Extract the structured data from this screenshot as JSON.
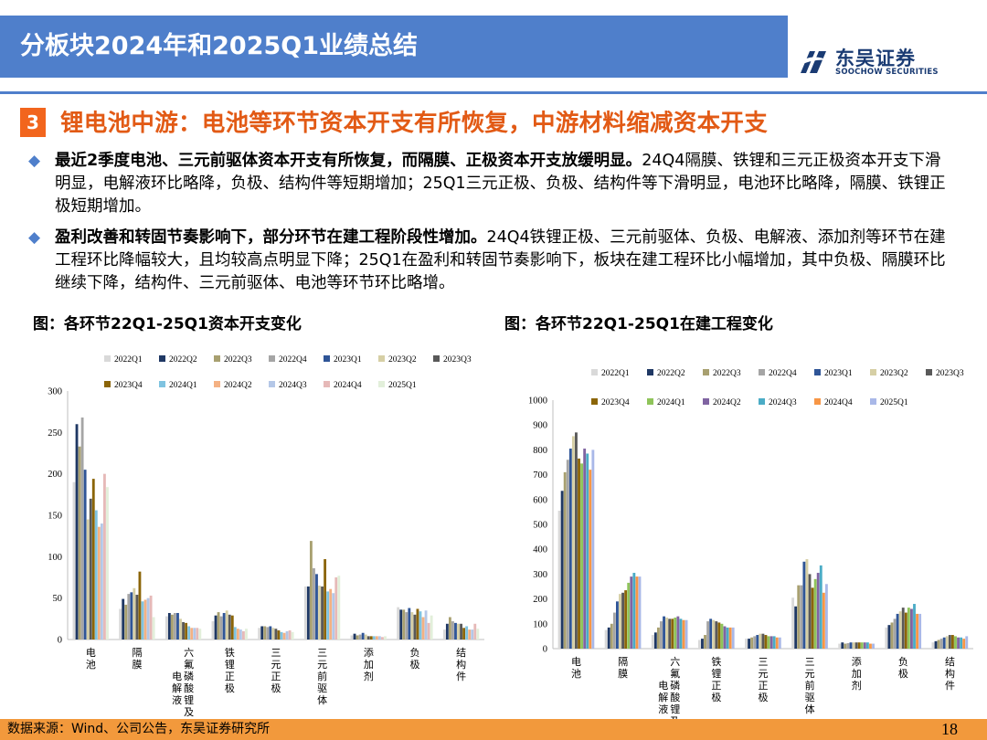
{
  "header": {
    "title": "分板块2024年和2025Q1业绩总结",
    "logo_cn": "东吴证券",
    "logo_en": "SOOCHOW SECURITIES"
  },
  "section": {
    "number": "3",
    "title": "锂电池中游：电池等环节资本开支有所恢复，中游材料缩减资本开支"
  },
  "bullets": [
    {
      "lead": "最近2季度电池、三元前驱体资本开支有所恢复，而隔膜、正极资本开支放缓明显。",
      "body": "24Q4隔膜、铁锂和三元正极资本开支下滑明显，电解液环比略降，负极、结构件等短期增加；25Q1三元正极、负极、结构件等下滑明显，电池环比略降，隔膜、铁锂正极短期增加。"
    },
    {
      "lead": "盈利改善和转固节奏影响下，部分环节在建工程阶段性增加。",
      "body": "24Q4铁锂正极、三元前驱体、负极、电解液、添加剂等环节在建工程环比降幅较大，且均较高点明显下降；25Q1在盈利和转固节奏影响下，板块在建工程环比小幅增加，其中负极、隔膜环比继续下降，结构件、三元前驱体、电池等环节环比略增。"
    }
  ],
  "footer": {
    "source": "数据来源：Wind、公司公告，东吴证券研究所",
    "page": "18"
  },
  "chart_data": [
    {
      "type": "bar",
      "title": "图：各环节22Q1-25Q1资本开支变化",
      "categories": [
        "电池",
        "隔膜",
        "六氟磷酸锂及电解液",
        "铁锂正极",
        "三元正极",
        "三元前驱体",
        "添加剂",
        "负极",
        "结构件"
      ],
      "category_labels": [
        [
          "电",
          "池"
        ],
        [
          "隔",
          "膜"
        ],
        [
          "六",
          "氟",
          "磷",
          "酸",
          "锂",
          "及"
        ],
        [
          "铁",
          "锂",
          "正",
          "极"
        ],
        [
          "三",
          "元",
          "正",
          "极"
        ],
        [
          "三",
          "元",
          "前",
          "驱",
          "体"
        ],
        [
          "添",
          "加",
          "剂"
        ],
        [
          "负",
          "极"
        ],
        [
          "结",
          "构",
          "件"
        ]
      ],
      "category_labels_extra": {
        "2": [
          "电",
          "解",
          "液"
        ]
      },
      "ylim": [
        0,
        300
      ],
      "yticks": [
        0,
        50,
        100,
        150,
        200,
        250,
        300
      ],
      "legend_rows": [
        [
          "2022Q1",
          "2022Q2",
          "2022Q3",
          "2022Q4",
          "2023Q1",
          "2023Q2",
          "2023Q3"
        ],
        [
          "2023Q4",
          "2024Q1",
          "2024Q2",
          "2024Q3",
          "2024Q4",
          "2025Q1"
        ]
      ],
      "legend_position": "top",
      "series": [
        {
          "name": "2022Q1",
          "color": "#D9D9D9",
          "values": [
            190,
            37,
            28,
            22,
            14,
            64,
            5,
            39,
            12
          ]
        },
        {
          "name": "2022Q2",
          "color": "#1F3864",
          "values": [
            260,
            49,
            32,
            29,
            16,
            64,
            7,
            36,
            19
          ]
        },
        {
          "name": "2022Q3",
          "color": "#A8A070",
          "values": [
            233,
            42,
            30,
            33,
            16,
            119,
            5,
            36,
            27
          ]
        },
        {
          "name": "2022Q4",
          "color": "#A5A5A5",
          "values": [
            268,
            55,
            32,
            28,
            15,
            86,
            6,
            33,
            22
          ]
        },
        {
          "name": "2023Q1",
          "color": "#2F5597",
          "values": [
            205,
            57,
            32,
            32,
            16,
            79,
            8,
            38,
            20
          ]
        },
        {
          "name": "2023Q2",
          "color": "#D6CFA5",
          "values": [
            145,
            62,
            25,
            35,
            14,
            65,
            6,
            33,
            19
          ]
        },
        {
          "name": "2023Q3",
          "color": "#595959",
          "values": [
            170,
            54,
            21,
            30,
            13,
            64,
            4,
            30,
            19
          ]
        },
        {
          "name": "2023Q4",
          "color": "#8B6508",
          "values": [
            194,
            82,
            20,
            29,
            11,
            97,
            4,
            37,
            14
          ]
        },
        {
          "name": "2024Q1",
          "color": "#7FC3E0",
          "values": [
            156,
            46,
            16,
            15,
            9,
            58,
            4,
            34,
            16
          ]
        },
        {
          "name": "2024Q2",
          "color": "#F4B183",
          "values": [
            136,
            48,
            14,
            13,
            8,
            61,
            4,
            27,
            12
          ]
        },
        {
          "name": "2024Q3",
          "color": "#B4C7E7",
          "values": [
            140,
            50,
            14,
            12,
            10,
            56,
            4,
            35,
            12
          ]
        },
        {
          "name": "2024Q4",
          "color": "#E6B9B8",
          "values": [
            200,
            53,
            14,
            10,
            11,
            75,
            3,
            20,
            19
          ]
        },
        {
          "name": "2025Q1",
          "color": "#E2EFDA",
          "values": [
            184,
            27,
            13,
            13,
            9,
            77,
            4,
            29,
            13
          ]
        }
      ]
    },
    {
      "type": "bar",
      "title": "图：各环节22Q1-25Q1在建工程变化",
      "categories": [
        "电池",
        "隔膜",
        "六氟磷酸锂及电解液",
        "铁锂正极",
        "三元正极",
        "三元前驱体",
        "添加剂",
        "负极",
        "结构件"
      ],
      "category_labels": [
        [
          "电",
          "池"
        ],
        [
          "隔",
          "膜"
        ],
        [
          "六",
          "氟",
          "磷",
          "酸",
          "锂",
          "及"
        ],
        [
          "铁",
          "锂",
          "正",
          "极"
        ],
        [
          "三",
          "元",
          "正",
          "极"
        ],
        [
          "三",
          "元",
          "前",
          "驱",
          "体"
        ],
        [
          "添",
          "加",
          "剂"
        ],
        [
          "负",
          "极"
        ],
        [
          "结",
          "构",
          "件"
        ]
      ],
      "category_labels_extra": {
        "2": [
          "电",
          "解",
          "液"
        ]
      },
      "ylim": [
        0,
        1000
      ],
      "yticks": [
        0,
        100,
        200,
        300,
        400,
        500,
        600,
        700,
        800,
        900,
        1000
      ],
      "legend_rows": [
        [
          "2022Q1",
          "2022Q2",
          "2022Q3",
          "2022Q4",
          "2023Q1",
          "2023Q2",
          "2023Q3"
        ],
        [
          "2023Q4",
          "2024Q1",
          "2024Q2",
          "2024Q3",
          "2024Q4",
          "2025Q1"
        ]
      ],
      "legend_position": "top",
      "series": [
        {
          "name": "2022Q1",
          "color": "#D9D9D9",
          "values": [
            555,
            75,
            55,
            35,
            40,
            205,
            20,
            85,
            25
          ]
        },
        {
          "name": "2022Q2",
          "color": "#1F3864",
          "values": [
            635,
            85,
            65,
            40,
            40,
            170,
            25,
            95,
            30
          ]
        },
        {
          "name": "2022Q3",
          "color": "#A8A070",
          "values": [
            710,
            100,
            85,
            55,
            45,
            255,
            20,
            105,
            35
          ]
        },
        {
          "name": "2022Q4",
          "color": "#A5A5A5",
          "values": [
            760,
            145,
            110,
            110,
            50,
            255,
            22,
            120,
            40
          ]
        },
        {
          "name": "2023Q1",
          "color": "#2F5597",
          "values": [
            805,
            190,
            130,
            120,
            55,
            350,
            25,
            140,
            45
          ]
        },
        {
          "name": "2023Q2",
          "color": "#D6CFA5",
          "values": [
            855,
            220,
            125,
            115,
            60,
            360,
            25,
            150,
            50
          ]
        },
        {
          "name": "2023Q3",
          "color": "#595959",
          "values": [
            870,
            225,
            120,
            110,
            60,
            300,
            25,
            165,
            55
          ]
        },
        {
          "name": "2023Q4",
          "color": "#8B6508",
          "values": [
            765,
            235,
            120,
            105,
            55,
            245,
            25,
            145,
            55
          ]
        },
        {
          "name": "2024Q1",
          "color": "#8FC45A",
          "values": [
            745,
            265,
            125,
            100,
            50,
            280,
            25,
            165,
            50
          ]
        },
        {
          "name": "2024Q2",
          "color": "#8064A2",
          "values": [
            805,
            290,
            130,
            90,
            50,
            305,
            25,
            160,
            45
          ]
        },
        {
          "name": "2024Q3",
          "color": "#4BACC6",
          "values": [
            785,
            305,
            120,
            85,
            50,
            335,
            25,
            180,
            45
          ]
        },
        {
          "name": "2024Q4",
          "color": "#F79646",
          "values": [
            720,
            290,
            115,
            85,
            45,
            225,
            20,
            140,
            40
          ]
        },
        {
          "name": "2025Q1",
          "color": "#A9B8E8",
          "values": [
            800,
            290,
            115,
            85,
            45,
            260,
            20,
            140,
            50
          ]
        }
      ]
    }
  ]
}
